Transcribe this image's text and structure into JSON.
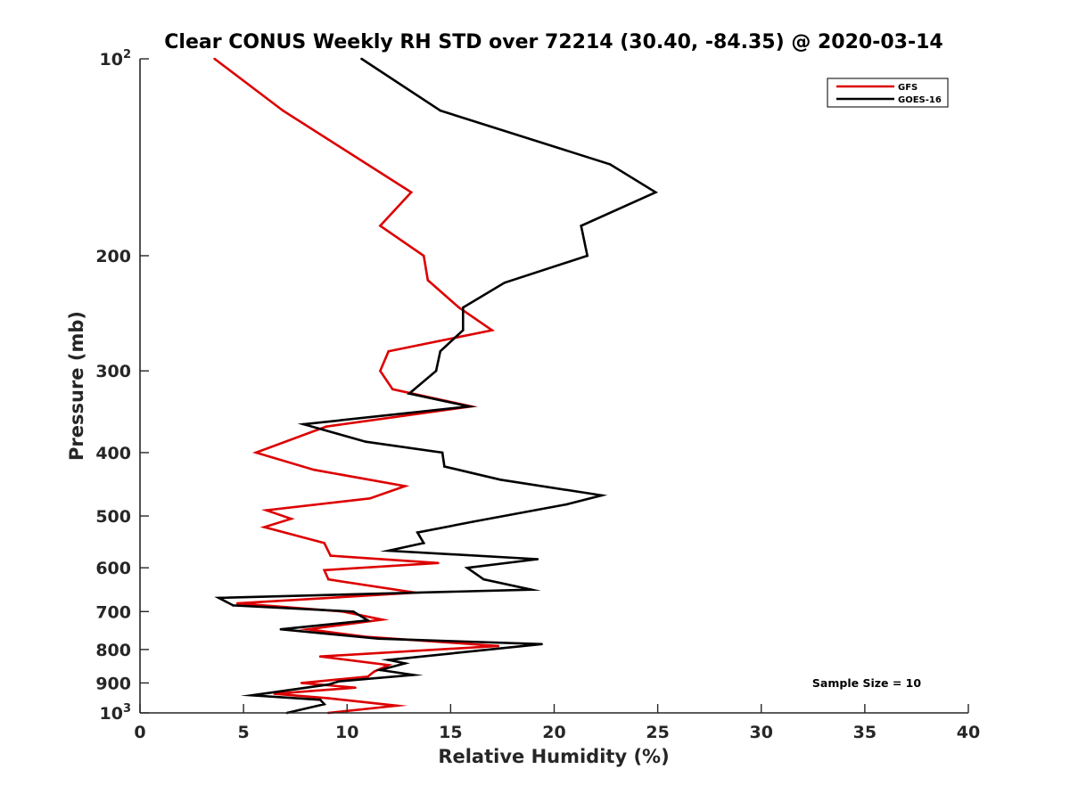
{
  "chart_data": {
    "type": "line",
    "title": "Clear CONUS Weekly RH STD over 72214 (30.40, -84.35) @ 2020-03-14",
    "xlabel": "Relative Humidity (%)",
    "ylabel": "Pressure (mb)",
    "xlim": [
      0,
      40
    ],
    "ylim": [
      100,
      1000
    ],
    "yscale": "log",
    "yreversed": true,
    "x_ticks": [
      0,
      5,
      10,
      15,
      20,
      25,
      30,
      35,
      40
    ],
    "x_tick_labels": [
      "0",
      "5",
      "10",
      "15",
      "20",
      "25",
      "30",
      "35",
      "40"
    ],
    "y_ticks": [
      {
        "value": 100,
        "base": "10",
        "exp": "2"
      },
      {
        "value": 200,
        "label": "200"
      },
      {
        "value": 300,
        "label": "300"
      },
      {
        "value": 400,
        "label": "400"
      },
      {
        "value": 500,
        "label": "500"
      },
      {
        "value": 600,
        "label": "600"
      },
      {
        "value": 700,
        "label": "700"
      },
      {
        "value": 800,
        "label": "800"
      },
      {
        "value": 900,
        "label": "900"
      },
      {
        "value": 1000,
        "base": "10",
        "exp": "3"
      }
    ],
    "legend": {
      "position": "top-right",
      "entries": [
        "GFS",
        "GOES-16"
      ]
    },
    "annotation": "Sample Size = 10",
    "series": [
      {
        "name": "GFS",
        "color": "#dd0000",
        "points": [
          {
            "x": 3.6,
            "p": 100
          },
          {
            "x": 6.9,
            "p": 120
          },
          {
            "x": 13.1,
            "p": 160
          },
          {
            "x": 11.6,
            "p": 180
          },
          {
            "x": 13.7,
            "p": 200
          },
          {
            "x": 13.9,
            "p": 218
          },
          {
            "x": 15.4,
            "p": 240
          },
          {
            "x": 17.0,
            "p": 260
          },
          {
            "x": 12.0,
            "p": 280
          },
          {
            "x": 11.6,
            "p": 300
          },
          {
            "x": 12.2,
            "p": 320
          },
          {
            "x": 16.0,
            "p": 340
          },
          {
            "x": 9.0,
            "p": 365
          },
          {
            "x": 5.6,
            "p": 400
          },
          {
            "x": 8.4,
            "p": 425
          },
          {
            "x": 12.8,
            "p": 450
          },
          {
            "x": 11.1,
            "p": 470
          },
          {
            "x": 6.1,
            "p": 490
          },
          {
            "x": 7.3,
            "p": 505
          },
          {
            "x": 6.0,
            "p": 520
          },
          {
            "x": 8.9,
            "p": 550
          },
          {
            "x": 9.2,
            "p": 575
          },
          {
            "x": 14.4,
            "p": 590
          },
          {
            "x": 8.9,
            "p": 605
          },
          {
            "x": 9.1,
            "p": 625
          },
          {
            "x": 13.3,
            "p": 655
          },
          {
            "x": 4.7,
            "p": 680
          },
          {
            "x": 9.8,
            "p": 700
          },
          {
            "x": 11.7,
            "p": 720
          },
          {
            "x": 8.1,
            "p": 745
          },
          {
            "x": 10.9,
            "p": 765
          },
          {
            "x": 17.3,
            "p": 790
          },
          {
            "x": 8.7,
            "p": 820
          },
          {
            "x": 12.0,
            "p": 845
          },
          {
            "x": 11.3,
            "p": 865
          },
          {
            "x": 11.0,
            "p": 880
          },
          {
            "x": 7.8,
            "p": 900
          },
          {
            "x": 10.4,
            "p": 915
          },
          {
            "x": 6.5,
            "p": 935
          },
          {
            "x": 9.1,
            "p": 950
          },
          {
            "x": 12.4,
            "p": 975
          },
          {
            "x": 9.1,
            "p": 1000
          }
        ]
      },
      {
        "name": "GOES-16",
        "color": "#000000",
        "points": [
          {
            "x": 10.7,
            "p": 100
          },
          {
            "x": 14.5,
            "p": 120
          },
          {
            "x": 22.7,
            "p": 145
          },
          {
            "x": 24.9,
            "p": 160
          },
          {
            "x": 21.3,
            "p": 180
          },
          {
            "x": 21.6,
            "p": 200
          },
          {
            "x": 17.6,
            "p": 220
          },
          {
            "x": 15.6,
            "p": 240
          },
          {
            "x": 15.6,
            "p": 260
          },
          {
            "x": 14.5,
            "p": 280
          },
          {
            "x": 14.3,
            "p": 300
          },
          {
            "x": 13.0,
            "p": 325
          },
          {
            "x": 15.9,
            "p": 340
          },
          {
            "x": 7.9,
            "p": 362
          },
          {
            "x": 10.9,
            "p": 385
          },
          {
            "x": 14.6,
            "p": 400
          },
          {
            "x": 14.7,
            "p": 420
          },
          {
            "x": 17.4,
            "p": 440
          },
          {
            "x": 22.3,
            "p": 465
          },
          {
            "x": 20.6,
            "p": 480
          },
          {
            "x": 16.1,
            "p": 510
          },
          {
            "x": 13.4,
            "p": 530
          },
          {
            "x": 13.7,
            "p": 550
          },
          {
            "x": 12.0,
            "p": 565
          },
          {
            "x": 19.2,
            "p": 582
          },
          {
            "x": 15.8,
            "p": 600
          },
          {
            "x": 16.6,
            "p": 625
          },
          {
            "x": 18.9,
            "p": 648
          },
          {
            "x": 3.8,
            "p": 667
          },
          {
            "x": 4.5,
            "p": 685
          },
          {
            "x": 10.3,
            "p": 700
          },
          {
            "x": 11.0,
            "p": 722
          },
          {
            "x": 6.8,
            "p": 745
          },
          {
            "x": 11.5,
            "p": 770
          },
          {
            "x": 19.4,
            "p": 785
          },
          {
            "x": 12.0,
            "p": 830
          },
          {
            "x": 12.8,
            "p": 840
          },
          {
            "x": 11.6,
            "p": 860
          },
          {
            "x": 13.2,
            "p": 875
          },
          {
            "x": 9.6,
            "p": 895
          },
          {
            "x": 9.1,
            "p": 905
          },
          {
            "x": 5.4,
            "p": 940
          },
          {
            "x": 8.7,
            "p": 955
          },
          {
            "x": 8.9,
            "p": 970
          },
          {
            "x": 7.1,
            "p": 1000
          }
        ]
      }
    ]
  }
}
